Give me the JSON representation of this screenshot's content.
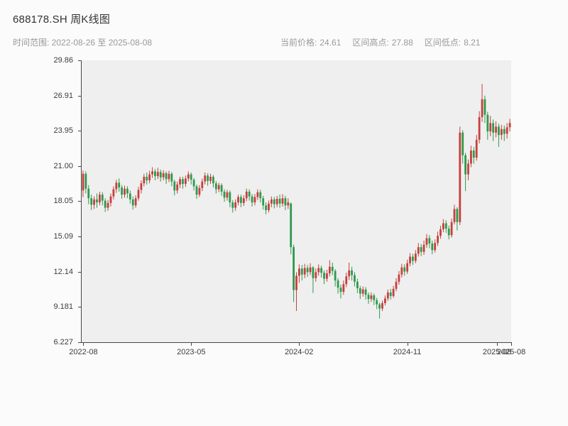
{
  "header": {
    "title": "688178.SH 周K线图",
    "subtitle_left": "时间范围: 2022-08-26 至 2025-08-08",
    "stats": [
      {
        "label": "当前价格:",
        "value": "24.61"
      },
      {
        "label": "区间高点:",
        "value": "27.88"
      },
      {
        "label": "区间低点:",
        "value": "8.21"
      }
    ]
  },
  "chart_data": {
    "type": "candlestick",
    "title": "688178.SH 周K线图",
    "symbol": "688178.SH",
    "period": "weekly",
    "date_range": [
      "2022-08-26",
      "2025-08-08"
    ],
    "current_price": 24.61,
    "range_high": 27.88,
    "range_low": 8.21,
    "grid": false,
    "colors": {
      "up": "#c5403c",
      "down": "#2e9a4d"
    },
    "y_axis": {
      "min": 6.227,
      "max": 29.86,
      "ticks": [
        "29.86",
        "26.91",
        "23.95",
        "21.00",
        "18.05",
        "15.09",
        "12.14",
        "9.181",
        "6.227"
      ]
    },
    "x_ticks": [
      {
        "label": "2022-08",
        "pos": 0.004
      },
      {
        "label": "2023-05",
        "pos": 0.255
      },
      {
        "label": "2024-02",
        "pos": 0.506
      },
      {
        "label": "2024-11",
        "pos": 0.758
      },
      {
        "label": "2025-08",
        "pos": 0.967
      },
      {
        "label": "2025-08",
        "pos": 1.0
      }
    ],
    "candle_format": [
      "open",
      "close",
      "low",
      "high"
    ],
    "candles": [
      [
        18.95,
        20.35,
        18.4,
        20.62
      ],
      [
        20.35,
        19.1,
        18.7,
        20.55
      ],
      [
        19.1,
        18.3,
        17.8,
        19.4
      ],
      [
        18.3,
        17.75,
        17.3,
        18.6
      ],
      [
        17.75,
        18.2,
        17.4,
        18.45
      ],
      [
        18.2,
        17.95,
        17.5,
        18.7
      ],
      [
        17.95,
        18.6,
        17.7,
        18.85
      ],
      [
        18.6,
        18.1,
        17.7,
        18.8
      ],
      [
        18.1,
        17.5,
        17.15,
        18.3
      ],
      [
        17.5,
        17.9,
        17.25,
        18.15
      ],
      [
        17.9,
        18.45,
        17.6,
        18.7
      ],
      [
        18.45,
        19.05,
        18.2,
        19.3
      ],
      [
        19.05,
        19.6,
        18.75,
        19.85
      ],
      [
        19.6,
        19.2,
        18.85,
        19.95
      ],
      [
        19.2,
        18.6,
        18.25,
        19.4
      ],
      [
        18.6,
        19.1,
        18.35,
        19.35
      ],
      [
        19.1,
        18.7,
        18.3,
        19.3
      ],
      [
        18.7,
        18.2,
        17.85,
        18.95
      ],
      [
        18.2,
        17.7,
        17.35,
        18.45
      ],
      [
        17.7,
        18.3,
        17.5,
        18.55
      ],
      [
        18.3,
        19.0,
        18.1,
        19.25
      ],
      [
        19.0,
        19.55,
        18.7,
        19.8
      ],
      [
        19.55,
        20.1,
        19.3,
        20.35
      ],
      [
        20.1,
        19.8,
        19.45,
        20.45
      ],
      [
        19.8,
        20.3,
        19.55,
        20.6
      ],
      [
        20.3,
        20.55,
        20.0,
        20.9
      ],
      [
        20.55,
        20.15,
        19.8,
        20.75
      ],
      [
        20.15,
        20.5,
        19.9,
        20.85
      ],
      [
        20.5,
        20.05,
        19.7,
        20.7
      ],
      [
        20.05,
        20.4,
        19.8,
        20.65
      ],
      [
        20.4,
        19.9,
        19.5,
        20.55
      ],
      [
        19.9,
        20.35,
        19.65,
        20.6
      ],
      [
        20.35,
        19.7,
        19.3,
        20.5
      ],
      [
        19.7,
        18.95,
        18.55,
        19.85
      ],
      [
        18.95,
        19.45,
        18.7,
        19.7
      ],
      [
        19.45,
        19.9,
        19.15,
        20.1
      ],
      [
        19.9,
        19.5,
        19.1,
        20.1
      ],
      [
        19.5,
        19.95,
        19.25,
        20.2
      ],
      [
        19.95,
        20.3,
        19.7,
        20.55
      ],
      [
        20.3,
        19.85,
        19.45,
        20.45
      ],
      [
        19.85,
        19.3,
        18.95,
        20.0
      ],
      [
        19.3,
        18.6,
        18.25,
        19.45
      ],
      [
        18.6,
        19.15,
        18.4,
        19.4
      ],
      [
        19.15,
        19.7,
        18.9,
        19.95
      ],
      [
        19.7,
        20.2,
        19.45,
        20.45
      ],
      [
        20.2,
        19.75,
        19.35,
        20.4
      ],
      [
        19.75,
        20.1,
        19.5,
        20.35
      ],
      [
        20.1,
        19.55,
        19.2,
        20.25
      ],
      [
        19.55,
        19.05,
        18.7,
        19.75
      ],
      [
        19.05,
        19.4,
        18.8,
        19.6
      ],
      [
        19.4,
        18.85,
        18.5,
        19.55
      ],
      [
        18.85,
        18.35,
        18.0,
        19.05
      ],
      [
        18.35,
        18.8,
        18.1,
        19.0
      ],
      [
        18.8,
        17.95,
        17.55,
        18.95
      ],
      [
        17.95,
        17.5,
        17.1,
        18.15
      ],
      [
        17.5,
        17.95,
        17.25,
        18.2
      ],
      [
        17.95,
        18.4,
        17.7,
        18.6
      ],
      [
        18.4,
        17.9,
        17.55,
        18.6
      ],
      [
        17.9,
        18.3,
        17.65,
        18.55
      ],
      [
        18.3,
        18.85,
        18.05,
        19.1
      ],
      [
        18.85,
        18.45,
        18.1,
        19.05
      ],
      [
        18.45,
        17.95,
        17.6,
        18.65
      ],
      [
        17.95,
        18.4,
        17.7,
        18.65
      ],
      [
        18.4,
        18.8,
        18.15,
        19.05
      ],
      [
        18.8,
        18.3,
        17.95,
        19.0
      ],
      [
        18.3,
        17.7,
        17.35,
        18.5
      ],
      [
        17.7,
        17.3,
        16.95,
        17.95
      ],
      [
        17.3,
        17.85,
        17.1,
        18.1
      ],
      [
        17.85,
        18.2,
        17.55,
        18.45
      ],
      [
        18.2,
        17.8,
        17.45,
        18.4
      ],
      [
        17.8,
        18.25,
        17.55,
        18.5
      ],
      [
        18.25,
        17.85,
        17.5,
        18.6
      ],
      [
        17.85,
        18.3,
        17.6,
        18.65
      ],
      [
        18.3,
        17.7,
        17.3,
        18.5
      ],
      [
        17.7,
        17.95,
        17.4,
        18.3
      ],
      [
        17.85,
        14.2,
        13.6,
        17.95
      ],
      [
        14.2,
        10.6,
        9.6,
        14.4
      ],
      [
        10.6,
        11.8,
        8.85,
        12.1
      ],
      [
        11.8,
        12.4,
        11.2,
        12.75
      ],
      [
        12.4,
        11.9,
        11.4,
        12.7
      ],
      [
        11.9,
        12.45,
        11.6,
        12.8
      ],
      [
        12.45,
        12.1,
        11.7,
        12.7
      ],
      [
        12.1,
        12.5,
        11.85,
        12.85
      ],
      [
        12.5,
        11.6,
        10.35,
        12.6
      ],
      [
        11.6,
        12.1,
        11.3,
        12.4
      ],
      [
        12.1,
        12.45,
        11.8,
        12.75
      ],
      [
        12.45,
        12.05,
        11.65,
        12.65
      ],
      [
        12.05,
        11.55,
        11.1,
        12.25
      ],
      [
        11.55,
        12.0,
        11.3,
        12.3
      ],
      [
        12.0,
        12.55,
        11.75,
        13.1
      ],
      [
        12.55,
        12.2,
        11.85,
        12.9
      ],
      [
        12.2,
        11.4,
        10.9,
        12.35
      ],
      [
        11.4,
        10.8,
        10.3,
        11.6
      ],
      [
        10.8,
        10.45,
        9.9,
        11.05
      ],
      [
        10.45,
        11.1,
        10.2,
        11.4
      ],
      [
        11.1,
        11.75,
        10.85,
        12.05
      ],
      [
        11.75,
        12.25,
        11.45,
        12.9
      ],
      [
        12.25,
        11.85,
        11.4,
        12.55
      ],
      [
        11.85,
        11.3,
        10.9,
        12.1
      ],
      [
        11.3,
        10.75,
        10.35,
        11.55
      ],
      [
        10.75,
        10.3,
        9.85,
        10.95
      ],
      [
        10.3,
        10.65,
        10.05,
        10.9
      ],
      [
        10.65,
        10.2,
        9.8,
        10.85
      ],
      [
        10.2,
        9.85,
        9.45,
        10.4
      ],
      [
        9.85,
        10.15,
        9.6,
        10.4
      ],
      [
        10.15,
        9.75,
        9.35,
        10.3
      ],
      [
        9.75,
        9.4,
        9.0,
        9.95
      ],
      [
        9.4,
        9.05,
        8.21,
        9.55
      ],
      [
        9.05,
        9.5,
        8.85,
        9.7
      ],
      [
        9.5,
        9.9,
        9.3,
        10.15
      ],
      [
        9.9,
        10.4,
        9.7,
        10.65
      ],
      [
        10.4,
        10.1,
        9.8,
        10.7
      ],
      [
        10.1,
        10.7,
        9.95,
        10.95
      ],
      [
        10.7,
        11.3,
        10.5,
        11.6
      ],
      [
        11.3,
        11.9,
        11.05,
        12.2
      ],
      [
        11.9,
        12.5,
        11.65,
        12.8
      ],
      [
        12.5,
        12.15,
        11.8,
        12.75
      ],
      [
        12.15,
        12.85,
        11.95,
        13.15
      ],
      [
        12.85,
        13.4,
        12.6,
        13.7
      ],
      [
        13.4,
        13.05,
        12.7,
        13.65
      ],
      [
        13.05,
        13.65,
        12.85,
        13.95
      ],
      [
        13.65,
        14.2,
        13.4,
        14.55
      ],
      [
        14.2,
        13.8,
        13.45,
        14.45
      ],
      [
        13.8,
        14.4,
        13.55,
        14.75
      ],
      [
        14.4,
        14.95,
        14.15,
        15.3
      ],
      [
        14.95,
        14.5,
        14.1,
        15.2
      ],
      [
        14.5,
        13.95,
        13.6,
        14.75
      ],
      [
        13.95,
        14.55,
        13.75,
        14.85
      ],
      [
        14.55,
        15.15,
        14.3,
        15.5
      ],
      [
        15.15,
        15.7,
        14.9,
        16.0
      ],
      [
        15.7,
        16.2,
        15.45,
        16.55
      ],
      [
        16.2,
        15.75,
        15.4,
        16.45
      ],
      [
        15.75,
        15.2,
        14.85,
        16.0
      ],
      [
        15.2,
        16.3,
        15.0,
        16.6
      ],
      [
        16.3,
        17.4,
        16.1,
        17.75
      ],
      [
        17.4,
        16.3,
        15.6,
        17.55
      ],
      [
        16.3,
        23.8,
        16.05,
        24.3
      ],
      [
        23.8,
        21.9,
        21.2,
        24.0
      ],
      [
        21.9,
        20.3,
        18.9,
        22.1
      ],
      [
        20.3,
        21.2,
        19.8,
        21.55
      ],
      [
        21.2,
        22.3,
        20.9,
        22.7
      ],
      [
        22.3,
        21.7,
        21.2,
        22.6
      ],
      [
        21.7,
        23.2,
        21.45,
        23.6
      ],
      [
        23.2,
        25.1,
        22.9,
        25.6
      ],
      [
        25.1,
        26.6,
        24.7,
        27.88
      ],
      [
        26.6,
        25.3,
        24.6,
        26.9
      ],
      [
        25.3,
        23.9,
        23.2,
        25.55
      ],
      [
        23.9,
        24.6,
        23.5,
        25.2
      ],
      [
        24.6,
        23.8,
        23.1,
        24.9
      ],
      [
        23.8,
        24.3,
        23.4,
        24.75
      ],
      [
        24.3,
        23.6,
        22.6,
        24.55
      ],
      [
        23.6,
        24.1,
        23.2,
        24.45
      ],
      [
        24.1,
        23.7,
        23.1,
        24.4
      ],
      [
        23.7,
        24.25,
        23.3,
        24.6
      ],
      [
        24.25,
        24.61,
        23.9,
        24.95
      ]
    ]
  }
}
